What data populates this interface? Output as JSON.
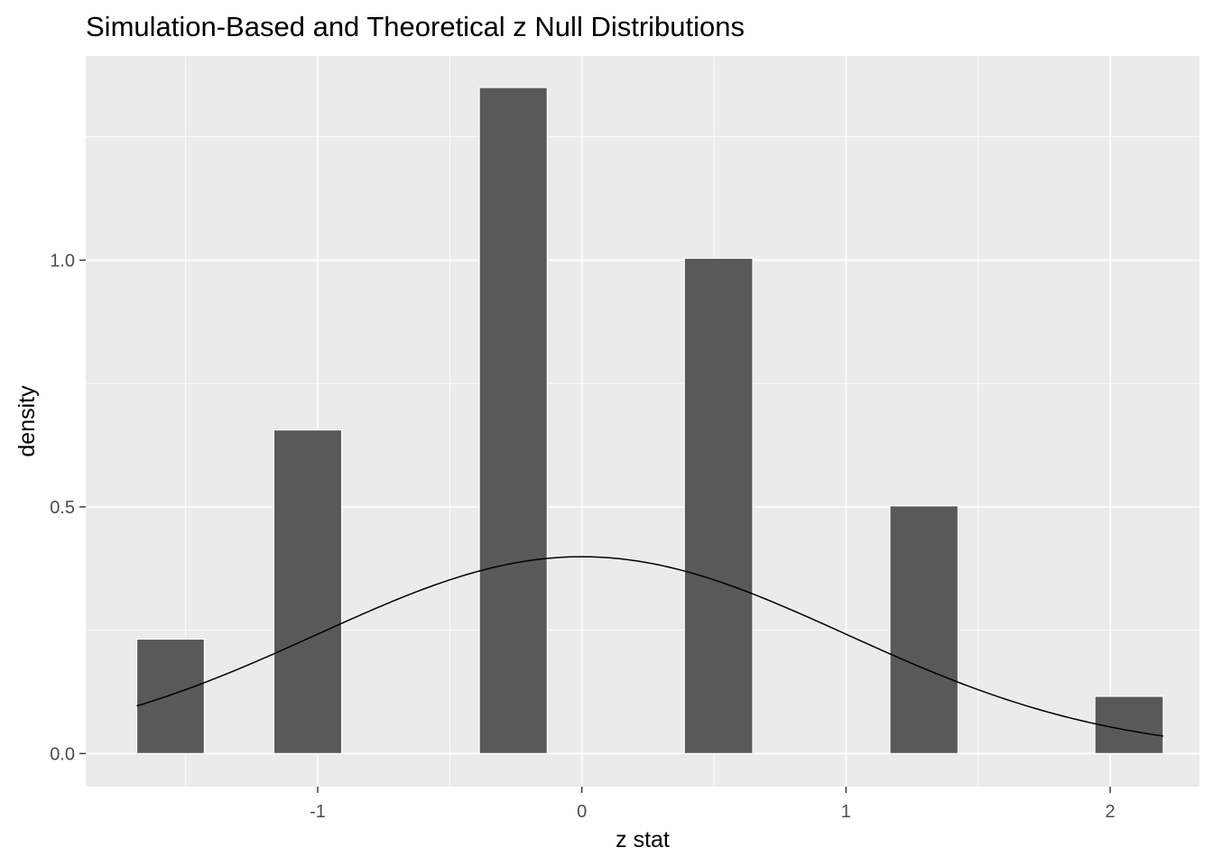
{
  "chart_data": {
    "type": "bar",
    "title": "Simulation-Based and Theoretical z Null Distributions",
    "xlabel": "z stat",
    "ylabel": "density",
    "xlim": [
      -1.878,
      2.338
    ],
    "ylim": [
      -0.067,
      1.414
    ],
    "x_ticks": [
      -1,
      0,
      1,
      2
    ],
    "x_tick_labels": [
      "-1",
      "0",
      "1",
      "2"
    ],
    "y_ticks": [
      0.0,
      0.5,
      1.0
    ],
    "y_tick_labels": [
      "0.0",
      "0.5",
      "1.0"
    ],
    "x_minor_ticks": [
      -1.5,
      -0.5,
      0.5,
      1.5
    ],
    "y_minor_ticks": [
      0.25,
      0.75,
      1.25
    ],
    "bars": [
      {
        "x_start": -1.685,
        "x_end": -1.429,
        "density": 0.232
      },
      {
        "x_start": -1.166,
        "x_end": -0.909,
        "density": 0.656
      },
      {
        "x_start": -0.388,
        "x_end": -0.131,
        "density": 1.35
      },
      {
        "x_start": 0.388,
        "x_end": 0.647,
        "density": 1.004
      },
      {
        "x_start": 1.166,
        "x_end": 1.424,
        "density": 0.502
      },
      {
        "x_start": 1.942,
        "x_end": 2.201,
        "density": 0.116
      }
    ],
    "series": [
      {
        "name": "",
        "type": "line",
        "x": [],
        "y": []
      }
    ],
    "theoretical_curve": {
      "distribution": "standard normal",
      "x_range": [
        -1.685,
        2.201
      ]
    },
    "grid": true,
    "colors": {
      "panel_background": "#ebebeb",
      "grid_line": "#ffffff",
      "bar_fill": "#595959",
      "bar_outline": "#ffffff",
      "curve": "#000000",
      "tick_mark": "#333333"
    }
  }
}
